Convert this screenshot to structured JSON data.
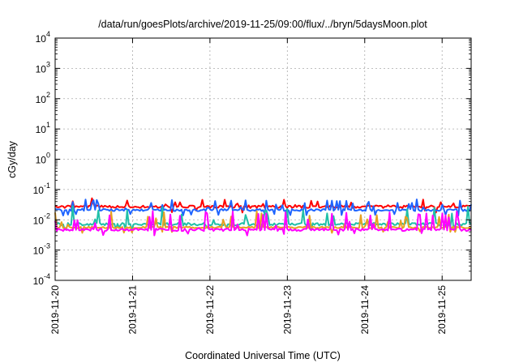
{
  "chart_data": {
    "type": "line",
    "title": "/data/run/goesPlots/archive/2019-11-25/09:00/flux/../bryn/5daysMoon.plot",
    "xlabel": "Coordinated Universal Time (UTC)",
    "ylabel": "cGy/day",
    "yscale": "log",
    "ylim": [
      0.0001,
      10000
    ],
    "y_ticks": [
      {
        "value": 0.0001,
        "base": "10",
        "exp": "-4"
      },
      {
        "value": 0.001,
        "base": "10",
        "exp": "-3"
      },
      {
        "value": 0.01,
        "base": "10",
        "exp": "-2"
      },
      {
        "value": 0.1,
        "base": "10",
        "exp": "-1"
      },
      {
        "value": 1,
        "base": "10",
        "exp": "0"
      },
      {
        "value": 10,
        "base": "10",
        "exp": "1"
      },
      {
        "value": 100,
        "base": "10",
        "exp": "2"
      },
      {
        "value": 1000,
        "base": "10",
        "exp": "3"
      },
      {
        "value": 10000,
        "base": "10",
        "exp": "4"
      }
    ],
    "xlim": [
      "2019-11-20T00:00",
      "2019-11-25T09:00"
    ],
    "x_ticks": [
      "2019-11-20",
      "2019-11-21",
      "2019-11-22",
      "2019-11-23",
      "2019-11-24",
      "2019-11-25"
    ],
    "grid": true,
    "legend": "none",
    "series": [
      {
        "color": "#ff0000",
        "baseline": 0.027,
        "noise": 0.1,
        "spike_factor": 1.8,
        "spike_prob": 0.1
      },
      {
        "color": "#1e64ff",
        "baseline": 0.021,
        "noise": 0.08,
        "spike_factor": 2.2,
        "spike_prob": 0.12
      },
      {
        "color": "#20c0a8",
        "baseline": 0.0072,
        "noise": 0.1,
        "spike_factor": 4.0,
        "spike_prob": 0.13
      },
      {
        "color": "#e8a020",
        "baseline": 0.0056,
        "noise": 0.06,
        "spike_factor": 3.5,
        "spike_prob": 0.1
      },
      {
        "color": "#ff00ff",
        "baseline": 0.0047,
        "noise": 0.1,
        "spike_factor": 4.2,
        "spike_prob": 0.16
      }
    ]
  }
}
